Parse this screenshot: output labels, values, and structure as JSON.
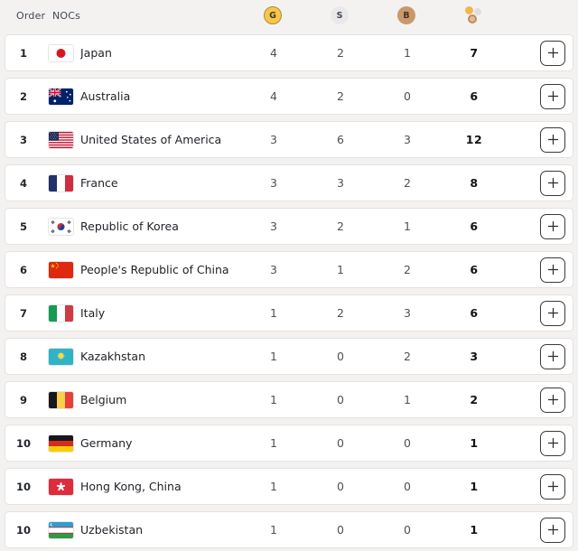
{
  "header": {
    "order_label": "Order",
    "nocs_label": "NOCs",
    "gold_label": "G",
    "silver_label": "S",
    "bronze_label": "B"
  },
  "colors": {
    "page_bg": "#f4f2f1",
    "card_border": "#e5e2e0",
    "gold": "#f7c64b",
    "gold_border": "#a98c3b",
    "silver": "#e9e9ec",
    "bronze": "#c9996b"
  },
  "rows": [
    {
      "order": "1",
      "noc": "Japan",
      "flag": "jpn",
      "gold": "4",
      "silver": "2",
      "bronze": "1",
      "total": "7"
    },
    {
      "order": "2",
      "noc": "Australia",
      "flag": "aus",
      "gold": "4",
      "silver": "2",
      "bronze": "0",
      "total": "6"
    },
    {
      "order": "3",
      "noc": "United States of America",
      "flag": "usa",
      "gold": "3",
      "silver": "6",
      "bronze": "3",
      "total": "12"
    },
    {
      "order": "4",
      "noc": "France",
      "flag": "fra",
      "gold": "3",
      "silver": "3",
      "bronze": "2",
      "total": "8"
    },
    {
      "order": "5",
      "noc": "Republic of Korea",
      "flag": "kor",
      "gold": "3",
      "silver": "2",
      "bronze": "1",
      "total": "6"
    },
    {
      "order": "6",
      "noc": "People's Republic of China",
      "flag": "chn",
      "gold": "3",
      "silver": "1",
      "bronze": "2",
      "total": "6"
    },
    {
      "order": "7",
      "noc": "Italy",
      "flag": "ita",
      "gold": "1",
      "silver": "2",
      "bronze": "3",
      "total": "6"
    },
    {
      "order": "8",
      "noc": "Kazakhstan",
      "flag": "kaz",
      "gold": "1",
      "silver": "0",
      "bronze": "2",
      "total": "3"
    },
    {
      "order": "9",
      "noc": "Belgium",
      "flag": "bel",
      "gold": "1",
      "silver": "0",
      "bronze": "1",
      "total": "2"
    },
    {
      "order": "10",
      "noc": "Germany",
      "flag": "ger",
      "gold": "1",
      "silver": "0",
      "bronze": "0",
      "total": "1"
    },
    {
      "order": "10",
      "noc": "Hong Kong, China",
      "flag": "hkg",
      "gold": "1",
      "silver": "0",
      "bronze": "0",
      "total": "1"
    },
    {
      "order": "10",
      "noc": "Uzbekistan",
      "flag": "uzb",
      "gold": "1",
      "silver": "0",
      "bronze": "0",
      "total": "1"
    }
  ]
}
